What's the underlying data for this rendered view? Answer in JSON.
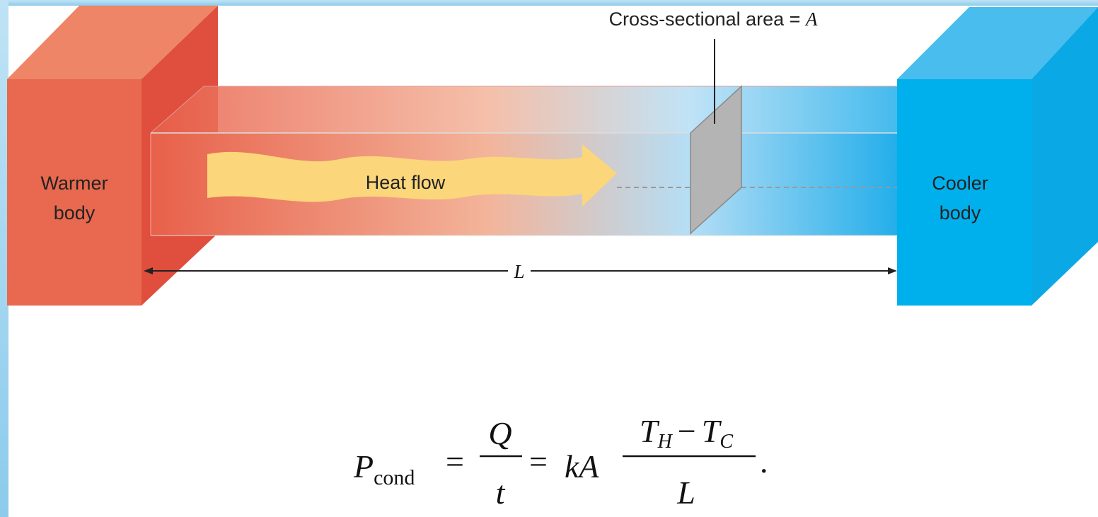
{
  "labels": {
    "area": "Cross-sectional area = ",
    "area_symbol": "A",
    "warmer": [
      "Warmer",
      "body"
    ],
    "cooler": [
      "Cooler",
      "body"
    ],
    "heat_flow": "Heat flow",
    "length": "L"
  },
  "equation": {
    "lhs": "P",
    "lhs_sub": "cond",
    "eq1": "=",
    "num1": "Q",
    "den1": "t",
    "eq2": "=",
    "coef": "kA",
    "num2_a": "T",
    "num2_a_sub": "H",
    "minus": "−",
    "num2_b": "T",
    "num2_b_sub": "C",
    "den2": "L",
    "end": "."
  }
}
